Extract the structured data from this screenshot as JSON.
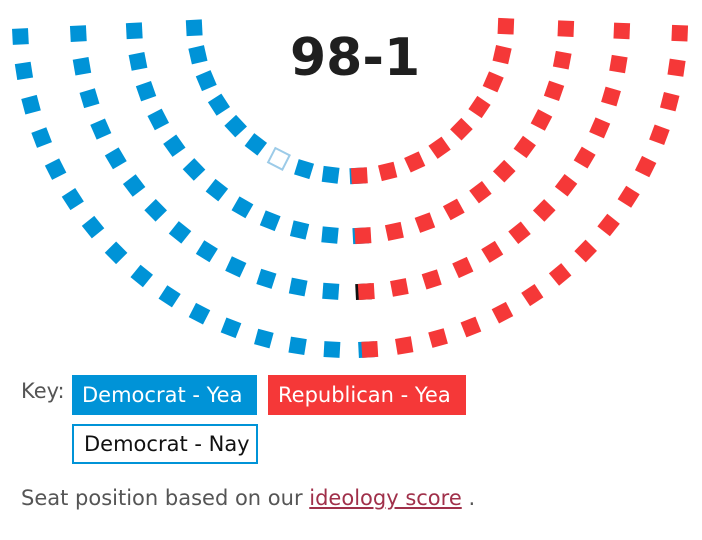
{
  "tally": "98-1",
  "key": {
    "label": "Key:",
    "items": [
      {
        "id": "dem-yea",
        "label": "Democrat - Yea"
      },
      {
        "id": "rep-yea",
        "label": "Republican - Yea"
      },
      {
        "id": "dem-nay",
        "label": "Democrat - Nay"
      }
    ]
  },
  "footnote": {
    "prefix": "Seat position based on our",
    "link_text": "ideology score",
    "suffix": "."
  },
  "colors": {
    "democrat": "#0093d7",
    "republican": "#f53838",
    "not_voting": "#111111",
    "nay_outline": "#9ccbe8"
  },
  "chart_data": {
    "type": "parliament-seats",
    "rows": 4,
    "seats": {
      "democrat_yea": 47,
      "democrat_nay": 1,
      "not_voting": 1,
      "republican_yea": 51
    }
  }
}
